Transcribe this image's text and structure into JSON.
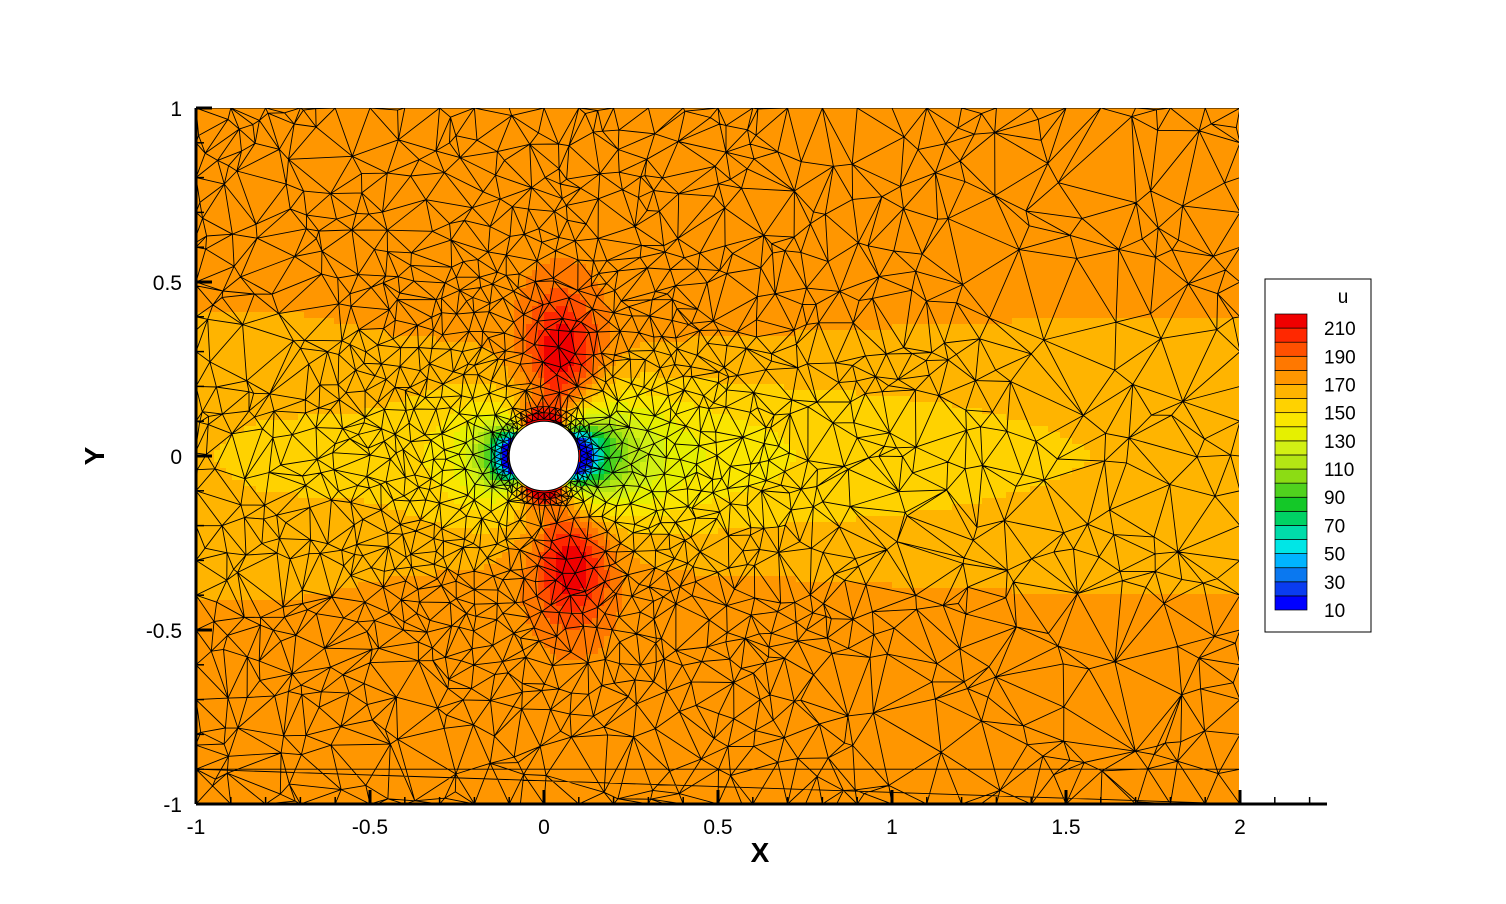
{
  "chart_data": {
    "type": "heatmap",
    "title": "",
    "xlabel": "X",
    "ylabel": "Y",
    "xlim": [
      -1,
      2.25
    ],
    "ylim": [
      -1,
      1
    ],
    "x_ticks": [
      -1,
      -0.5,
      0,
      0.5,
      1,
      1.5,
      2
    ],
    "x_tick_labels": [
      "-1",
      "-0.5",
      "0",
      "0.5",
      "1",
      "1.5",
      "2"
    ],
    "y_ticks": [
      -1,
      -0.5,
      0,
      0.5,
      1
    ],
    "y_tick_labels": [
      "-1",
      "-0.5",
      "0",
      "0.5",
      "1"
    ],
    "field": {
      "name": "u",
      "domain_x": [
        -1,
        2
      ],
      "domain_y": [
        -1,
        1
      ],
      "obstacle": {
        "shape": "circle",
        "cx": 0,
        "cy": 0,
        "r": 0.1
      },
      "freestream_value": 172,
      "wake_value": 145,
      "peak_value": 215,
      "min_value": 10,
      "mesh": "unstructured triangular, refined near cylinder"
    },
    "legend": {
      "title": "u",
      "placement": "right",
      "levels": [
        10,
        20,
        30,
        40,
        50,
        60,
        70,
        80,
        90,
        100,
        110,
        120,
        130,
        140,
        150,
        160,
        170,
        180,
        190,
        200,
        210,
        220
      ],
      "labels": [
        "210",
        "190",
        "170",
        "150",
        "130",
        "110",
        "90",
        "70",
        "50",
        "30",
        "10"
      ],
      "label_values": [
        210,
        190,
        170,
        150,
        130,
        110,
        90,
        70,
        50,
        30,
        10
      ],
      "colors": [
        "#0000ff",
        "#0a3cf0",
        "#0a78f0",
        "#00b4ff",
        "#00e6e6",
        "#00dcaa",
        "#00d264",
        "#14c828",
        "#50d21e",
        "#8cdc14",
        "#b4e614",
        "#d2f014",
        "#e6f000",
        "#fae600",
        "#ffd200",
        "#ffb400",
        "#ff9600",
        "#ff7800",
        "#ff5000",
        "#ff2800",
        "#f00000"
      ]
    },
    "grid": false
  }
}
